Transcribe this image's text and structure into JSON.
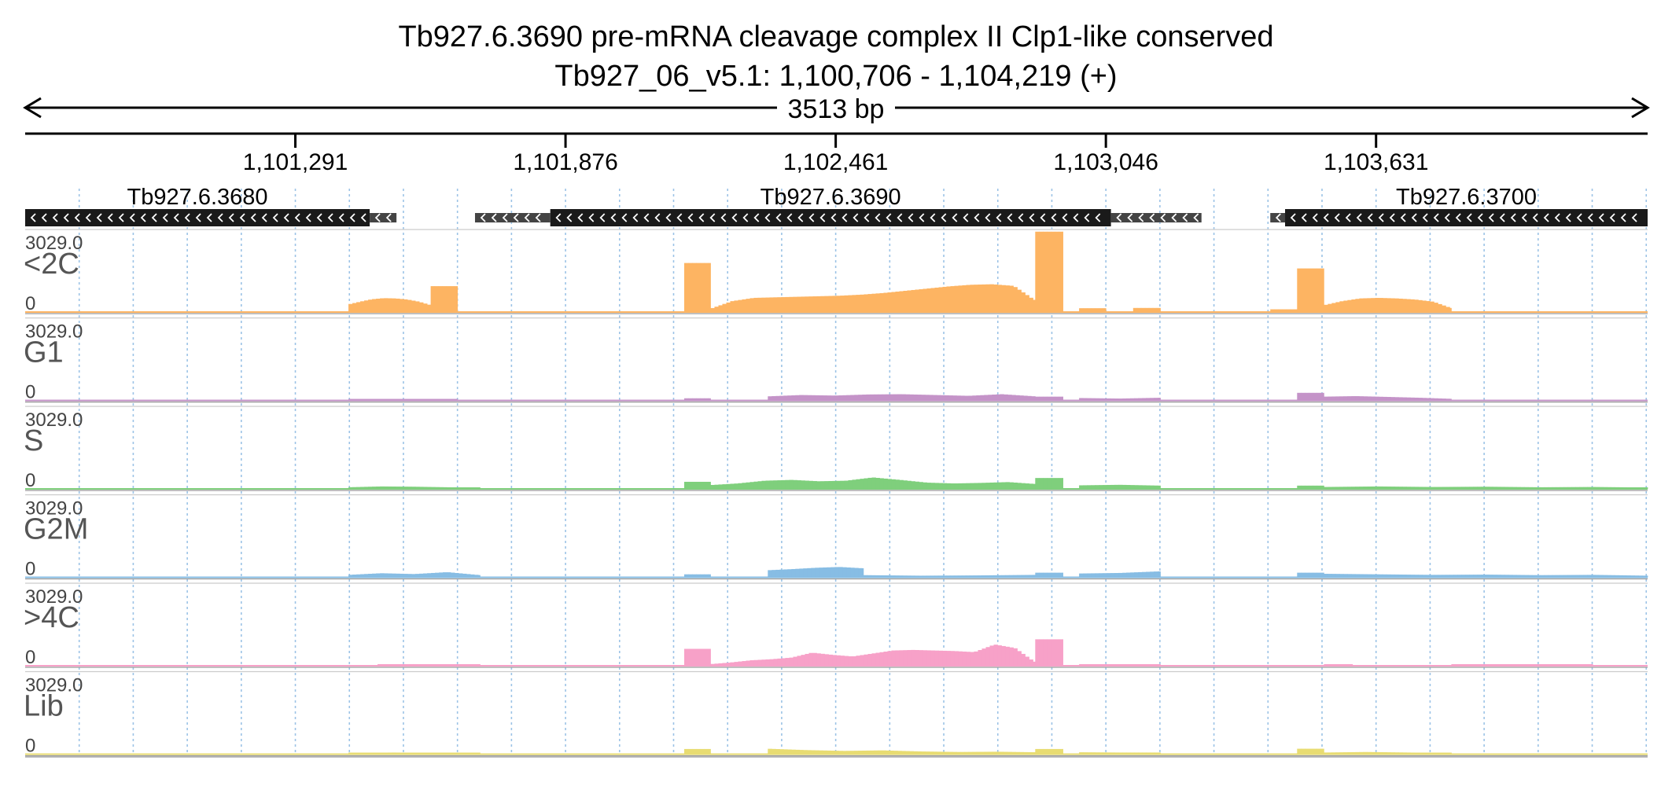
{
  "header": {
    "title_line1": "Tb927.6.3690  pre-mRNA cleavage complex II Clp1-like  conserved",
    "title_line2": "Tb927_06_v5.1: 1,100,706 - 1,104,219 (+)",
    "span_label": "3513 bp"
  },
  "chart_data": {
    "type": "bar",
    "region": {
      "chrom": "Tb927_06_v5.1",
      "start": 1100706,
      "end": 1104219,
      "strand": "+",
      "length_bp": 3513
    },
    "x_ticks": [
      {
        "pos": 1101291,
        "label": "1,101,291"
      },
      {
        "pos": 1101876,
        "label": "1,101,876"
      },
      {
        "pos": 1102461,
        "label": "1,102,461"
      },
      {
        "pos": 1103046,
        "label": "1,103,046"
      },
      {
        "pos": 1103631,
        "label": "1,103,631"
      }
    ],
    "genes": [
      {
        "name": "Tb927.6.3680",
        "strand": "-",
        "start": 1100706,
        "end": 1101452,
        "utr": [
          [
            1101452,
            1101510
          ]
        ]
      },
      {
        "name": "Tb927.6.3690",
        "strand": "-",
        "start": 1101843,
        "end": 1103057,
        "utr": [
          [
            1101680,
            1101843
          ],
          [
            1103057,
            1103253
          ]
        ]
      },
      {
        "name": "Tb927.6.3700",
        "strand": "-",
        "start": 1103434,
        "end": 1104219,
        "utr": [
          [
            1103402,
            1103434
          ]
        ]
      }
    ],
    "ylim": [
      0,
      3029.0
    ],
    "tracks": [
      {
        "name": "<2C",
        "color": "#fdb462",
        "ymax_label": "3029.0",
        "ymin_label": "0",
        "segments": [
          {
            "start": 1101406,
            "end": 1101584,
            "profile": [
              280,
              380,
              470,
              510,
              500,
              460,
              380,
              250
            ]
          },
          {
            "start": 1101584,
            "end": 1101642,
            "profile": [
              950,
              950
            ]
          },
          {
            "start": 1102133,
            "end": 1102190,
            "profile": [
              1800,
              1800
            ]
          },
          {
            "start": 1102190,
            "end": 1102893,
            "profile": [
              120,
              400,
              520,
              540,
              560,
              580,
              600,
              640,
              700,
              780,
              860,
              940,
              1000,
              1020,
              960,
              420
            ]
          },
          {
            "start": 1102893,
            "end": 1102953,
            "profile": [
              2950,
              2950
            ]
          },
          {
            "start": 1102988,
            "end": 1103046,
            "profile": [
              140,
              140
            ]
          },
          {
            "start": 1103105,
            "end": 1103164,
            "profile": [
              150,
              150
            ]
          },
          {
            "start": 1103402,
            "end": 1103460,
            "profile": [
              100,
              100
            ]
          },
          {
            "start": 1103460,
            "end": 1103518,
            "profile": [
              1600,
              1600
            ]
          },
          {
            "start": 1103518,
            "end": 1103794,
            "profile": [
              250,
              400,
              500,
              520,
              500,
              460,
              380,
              140
            ]
          }
        ]
      },
      {
        "name": "G1",
        "color": "#c493c8",
        "ymax_label": "3029.0",
        "ymin_label": "0",
        "segments": [
          {
            "start": 1101406,
            "end": 1101642,
            "profile": [
              30,
              40,
              40,
              30
            ]
          },
          {
            "start": 1102133,
            "end": 1102190,
            "profile": [
              80,
              80
            ]
          },
          {
            "start": 1102314,
            "end": 1102893,
            "profile": [
              150,
              200,
              180,
              220,
              230,
              200,
              170,
              230,
              150
            ]
          },
          {
            "start": 1102893,
            "end": 1102953,
            "profile": [
              140,
              140
            ]
          },
          {
            "start": 1102988,
            "end": 1103164,
            "profile": [
              90,
              70,
              100
            ]
          },
          {
            "start": 1103460,
            "end": 1103518,
            "profile": [
              280,
              280
            ]
          },
          {
            "start": 1103518,
            "end": 1103794,
            "profile": [
              140,
              160,
              130,
              100,
              60
            ]
          }
        ]
      },
      {
        "name": "S",
        "color": "#7fcf7c",
        "ymax_label": "3029.0",
        "ymin_label": "0",
        "segments": [
          {
            "start": 1101406,
            "end": 1101691,
            "profile": [
              60,
              90,
              80,
              60,
              40
            ]
          },
          {
            "start": 1102133,
            "end": 1102190,
            "profile": [
              260,
              260
            ]
          },
          {
            "start": 1102190,
            "end": 1102893,
            "profile": [
              140,
              200,
              300,
              330,
              280,
              300,
              420,
              330,
              230,
              200,
              220,
              250,
              180
            ]
          },
          {
            "start": 1102893,
            "end": 1102953,
            "profile": [
              400,
              400
            ]
          },
          {
            "start": 1102988,
            "end": 1103164,
            "profile": [
              130,
              150,
              120
            ]
          },
          {
            "start": 1103460,
            "end": 1103518,
            "profile": [
              120,
              120
            ]
          },
          {
            "start": 1103518,
            "end": 1104219,
            "profile": [
              70,
              90,
              70,
              80,
              60,
              70,
              50
            ]
          }
        ]
      },
      {
        "name": "G2M",
        "color": "#87bde4",
        "ymax_label": "3029.0",
        "ymin_label": "0",
        "segments": [
          {
            "start": 1101406,
            "end": 1101691,
            "profile": [
              90,
              150,
              120,
              190,
              80
            ]
          },
          {
            "start": 1102133,
            "end": 1102190,
            "profile": [
              110,
              110
            ]
          },
          {
            "start": 1102314,
            "end": 1102521,
            "profile": [
              260,
              300,
              350,
              380,
              330
            ]
          },
          {
            "start": 1102521,
            "end": 1102893,
            "profile": [
              80,
              60,
              70,
              90
            ]
          },
          {
            "start": 1102893,
            "end": 1102953,
            "profile": [
              170,
              170
            ]
          },
          {
            "start": 1102988,
            "end": 1103164,
            "profile": [
              140,
              160,
              220
            ]
          },
          {
            "start": 1103460,
            "end": 1103518,
            "profile": [
              170,
              170
            ]
          },
          {
            "start": 1103518,
            "end": 1104219,
            "profile": [
              130,
              110,
              90,
              100,
              80,
              90,
              60
            ]
          }
        ]
      },
      {
        "name": ">4C",
        "color": "#f7a1c8",
        "ymax_label": "3029.0",
        "ymin_label": "0",
        "segments": [
          {
            "start": 1101469,
            "end": 1101691,
            "profile": [
              40,
              60,
              50,
              40
            ]
          },
          {
            "start": 1102133,
            "end": 1102190,
            "profile": [
              620,
              620
            ]
          },
          {
            "start": 1102190,
            "end": 1102893,
            "profile": [
              60,
              120,
              200,
              240,
              300,
              480,
              400,
              340,
              450,
              560,
              580,
              560,
              540,
              500,
              780,
              650,
              120
            ]
          },
          {
            "start": 1102893,
            "end": 1102953,
            "profile": [
              970,
              970
            ]
          },
          {
            "start": 1102988,
            "end": 1103164,
            "profile": [
              50,
              40,
              40
            ]
          },
          {
            "start": 1103518,
            "end": 1103580,
            "profile": [
              50,
              40
            ]
          },
          {
            "start": 1103794,
            "end": 1104100,
            "profile": [
              40,
              40,
              40
            ]
          }
        ]
      },
      {
        "name": "Lib",
        "color": "#e8dc72",
        "ymax_label": "3029.0",
        "ymin_label": "0",
        "segments": [
          {
            "start": 1101406,
            "end": 1101691,
            "profile": [
              40,
              60,
              50,
              40
            ]
          },
          {
            "start": 1102133,
            "end": 1102190,
            "profile": [
              190,
              190
            ]
          },
          {
            "start": 1102314,
            "end": 1102893,
            "profile": [
              200,
              150,
              120,
              140,
              100,
              80,
              90,
              70
            ]
          },
          {
            "start": 1102893,
            "end": 1102953,
            "profile": [
              190,
              190
            ]
          },
          {
            "start": 1102988,
            "end": 1103164,
            "profile": [
              70,
              60,
              60
            ]
          },
          {
            "start": 1103460,
            "end": 1103518,
            "profile": [
              200,
              200
            ]
          },
          {
            "start": 1103518,
            "end": 1103794,
            "profile": [
              60,
              80,
              60,
              40
            ]
          }
        ]
      }
    ]
  }
}
